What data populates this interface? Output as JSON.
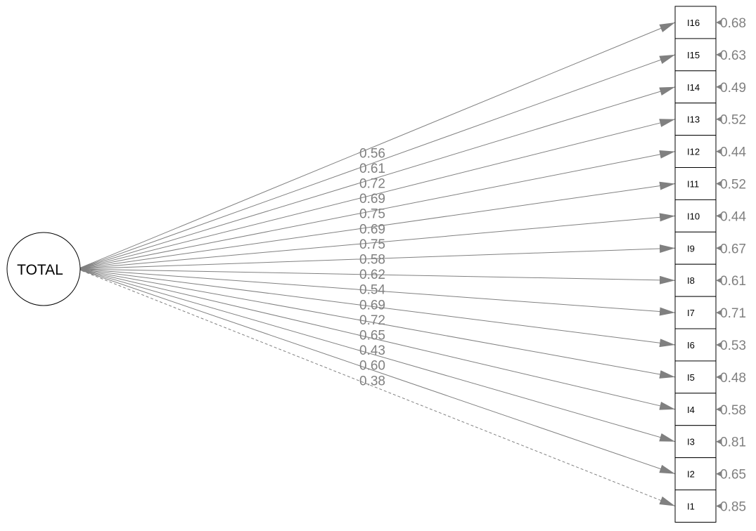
{
  "latent": {
    "label": "TOTAL"
  },
  "items": [
    {
      "label": "I16",
      "loading": "0.56",
      "residual": "0.68",
      "dashed": false
    },
    {
      "label": "I15",
      "loading": "0.61",
      "residual": "0.63",
      "dashed": false
    },
    {
      "label": "I14",
      "loading": "0.72",
      "residual": "0.49",
      "dashed": false
    },
    {
      "label": "I13",
      "loading": "0.69",
      "residual": "0.52",
      "dashed": false
    },
    {
      "label": "I12",
      "loading": "0.75",
      "residual": "0.44",
      "dashed": false
    },
    {
      "label": "I11",
      "loading": "0.69",
      "residual": "0.52",
      "dashed": false
    },
    {
      "label": "I10",
      "loading": "0.75",
      "residual": "0.44",
      "dashed": false
    },
    {
      "label": "I9",
      "loading": "0.58",
      "residual": "0.67",
      "dashed": false
    },
    {
      "label": "I8",
      "loading": "0.62",
      "residual": "0.61",
      "dashed": false
    },
    {
      "label": "I7",
      "loading": "0.54",
      "residual": "0.71",
      "dashed": false
    },
    {
      "label": "I6",
      "loading": "0.69",
      "residual": "0.53",
      "dashed": false
    },
    {
      "label": "I5",
      "loading": "0.72",
      "residual": "0.48",
      "dashed": false
    },
    {
      "label": "I4",
      "loading": "0.65",
      "residual": "0.58",
      "dashed": false
    },
    {
      "label": "I3",
      "loading": "0.43",
      "residual": "0.81",
      "dashed": false
    },
    {
      "label": "I2",
      "loading": "0.60",
      "residual": "0.65",
      "dashed": false
    },
    {
      "label": "I1",
      "loading": "0.38",
      "residual": "0.85",
      "dashed": true
    }
  ],
  "colors": {
    "path": "#808080",
    "node_stroke": "#000000",
    "node_fill": "#ffffff"
  }
}
